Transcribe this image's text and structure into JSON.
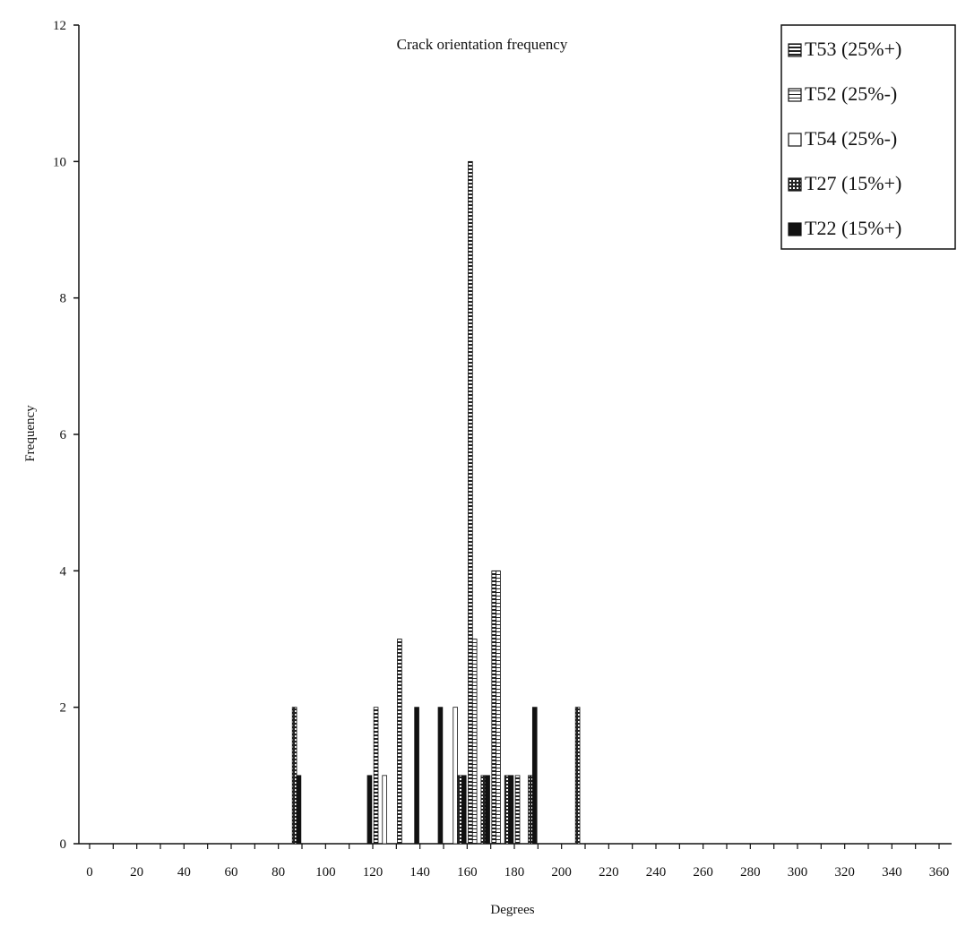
{
  "chart_data": {
    "type": "bar",
    "title": "Crack orientation frequency",
    "xlabel": "Degrees",
    "ylabel": "Frequency",
    "xlim": [
      0,
      360
    ],
    "ylim": [
      0,
      12
    ],
    "x_ticks": [
      "0",
      "20",
      "40",
      "60",
      "80",
      "100",
      "120",
      "140",
      "160",
      "180",
      "200",
      "220",
      "240",
      "260",
      "280",
      "300",
      "320",
      "340",
      "360"
    ],
    "y_ticks": [
      "0",
      "2",
      "4",
      "6",
      "8",
      "10",
      "12"
    ],
    "grid": false,
    "legend_position": "top-right",
    "series": [
      {
        "name": "T53 (25%+)",
        "pattern": "hstripe",
        "points": [
          [
            125,
            2
          ],
          [
            135,
            3
          ],
          [
            165,
            10
          ],
          [
            175,
            4
          ],
          [
            185,
            1
          ]
        ]
      },
      {
        "name": "T52 (25%-)",
        "pattern": "hlines",
        "points": [
          [
            165,
            3
          ],
          [
            175,
            4
          ]
        ]
      },
      {
        "name": "T54 (25%-)",
        "pattern": "white",
        "points": [
          [
            125,
            1
          ],
          [
            155,
            2
          ]
        ]
      },
      {
        "name": "T27 (15%+)",
        "pattern": "dotted",
        "points": [
          [
            85,
            2
          ],
          [
            155,
            1
          ],
          [
            165,
            1
          ],
          [
            175,
            1
          ],
          [
            185,
            1
          ],
          [
            205,
            2
          ]
        ]
      },
      {
        "name": "T22 (15%+)",
        "pattern": "solid",
        "points": [
          [
            85,
            1
          ],
          [
            115,
            1
          ],
          [
            135,
            2
          ],
          [
            145,
            2
          ],
          [
            155,
            1
          ],
          [
            165,
            1
          ],
          [
            175,
            1
          ],
          [
            185,
            2
          ]
        ]
      }
    ]
  }
}
